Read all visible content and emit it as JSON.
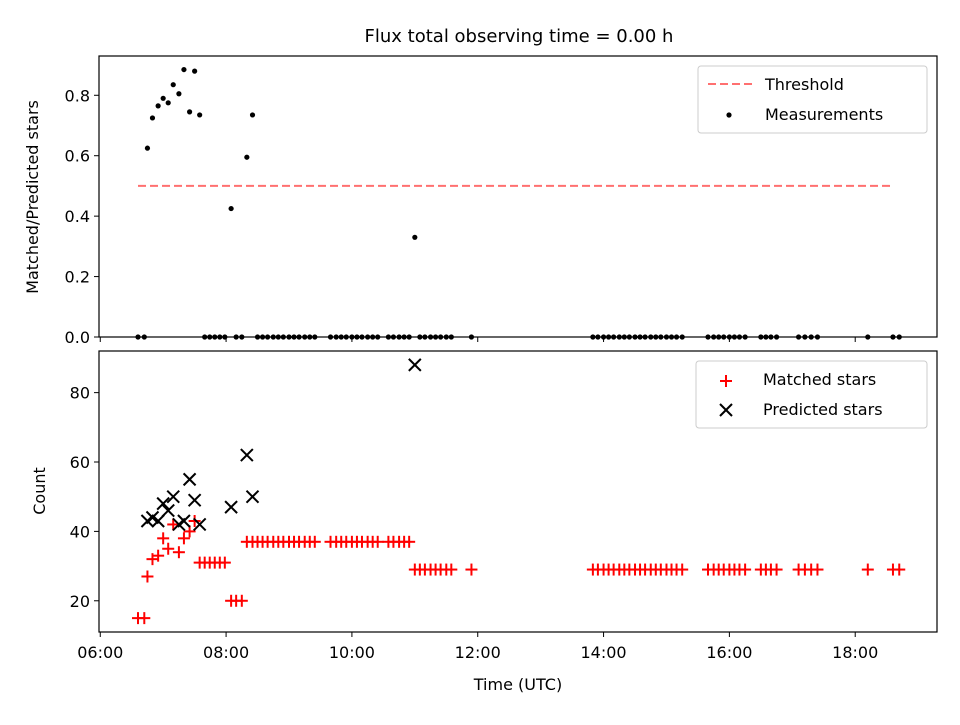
{
  "title": "Flux total observing time = 0.00 h",
  "chart_data": [
    {
      "type": "scatter",
      "ylabel": "Matched/Predicted stars",
      "xlim": [
        5.98,
        19.3
      ],
      "ylim": [
        0,
        0.93
      ],
      "yticks": [
        0.0,
        0.2,
        0.4,
        0.6,
        0.8
      ],
      "ytick_labels": [
        "0.0",
        "0.2",
        "0.4",
        "0.6",
        "0.8"
      ],
      "legend": {
        "position": "top-right",
        "threshold_label": "Threshold",
        "measurements_label": "Measurements"
      },
      "threshold": {
        "value": 0.5,
        "x_start": 6.6,
        "x_end": 18.6,
        "color": "#ff7070"
      },
      "measurements": {
        "color": "#000000",
        "points": [
          [
            6.6,
            0
          ],
          [
            6.7,
            0
          ],
          [
            6.75,
            0.625
          ],
          [
            6.83,
            0.725
          ],
          [
            6.92,
            0.765
          ],
          [
            7.0,
            0.79
          ],
          [
            7.08,
            0.775
          ],
          [
            7.16,
            0.835
          ],
          [
            7.25,
            0.805
          ],
          [
            7.33,
            0.885
          ],
          [
            7.42,
            0.745
          ],
          [
            7.5,
            0.88
          ],
          [
            7.58,
            0.735
          ],
          [
            7.66,
            0
          ],
          [
            7.74,
            0
          ],
          [
            7.82,
            0
          ],
          [
            7.9,
            0
          ],
          [
            7.98,
            0
          ],
          [
            8.08,
            0.425
          ],
          [
            8.16,
            0
          ],
          [
            8.25,
            0
          ],
          [
            8.33,
            0.595
          ],
          [
            8.42,
            0.735
          ],
          [
            8.5,
            0
          ],
          [
            8.58,
            0
          ],
          [
            8.66,
            0
          ],
          [
            8.75,
            0
          ],
          [
            8.83,
            0
          ],
          [
            8.91,
            0
          ],
          [
            9.0,
            0
          ],
          [
            9.08,
            0
          ],
          [
            9.16,
            0
          ],
          [
            9.25,
            0
          ],
          [
            9.33,
            0
          ],
          [
            9.41,
            0
          ],
          [
            9.66,
            0
          ],
          [
            9.75,
            0
          ],
          [
            9.83,
            0
          ],
          [
            9.91,
            0
          ],
          [
            10.0,
            0
          ],
          [
            10.08,
            0
          ],
          [
            10.16,
            0
          ],
          [
            10.25,
            0
          ],
          [
            10.33,
            0
          ],
          [
            10.41,
            0
          ],
          [
            10.58,
            0
          ],
          [
            10.66,
            0
          ],
          [
            10.75,
            0
          ],
          [
            10.83,
            0
          ],
          [
            10.91,
            0
          ],
          [
            11.0,
            0.33
          ],
          [
            11.08,
            0
          ],
          [
            11.16,
            0
          ],
          [
            11.25,
            0
          ],
          [
            11.33,
            0
          ],
          [
            11.41,
            0
          ],
          [
            11.5,
            0
          ],
          [
            11.58,
            0
          ],
          [
            11.9,
            0
          ],
          [
            13.83,
            0
          ],
          [
            13.91,
            0
          ],
          [
            14.0,
            0
          ],
          [
            14.08,
            0
          ],
          [
            14.16,
            0
          ],
          [
            14.25,
            0
          ],
          [
            14.33,
            0
          ],
          [
            14.41,
            0
          ],
          [
            14.5,
            0
          ],
          [
            14.58,
            0
          ],
          [
            14.66,
            0
          ],
          [
            14.75,
            0
          ],
          [
            14.83,
            0
          ],
          [
            14.91,
            0
          ],
          [
            15.0,
            0
          ],
          [
            15.08,
            0
          ],
          [
            15.16,
            0
          ],
          [
            15.25,
            0
          ],
          [
            15.66,
            0
          ],
          [
            15.75,
            0
          ],
          [
            15.83,
            0
          ],
          [
            15.91,
            0
          ],
          [
            16.0,
            0
          ],
          [
            16.08,
            0
          ],
          [
            16.16,
            0
          ],
          [
            16.25,
            0
          ],
          [
            16.5,
            0
          ],
          [
            16.58,
            0
          ],
          [
            16.66,
            0
          ],
          [
            16.75,
            0
          ],
          [
            17.1,
            0
          ],
          [
            17.2,
            0
          ],
          [
            17.3,
            0
          ],
          [
            17.4,
            0
          ],
          [
            18.2,
            0
          ],
          [
            18.6,
            0
          ],
          [
            18.7,
            0
          ]
        ]
      }
    },
    {
      "type": "scatter",
      "ylabel": "Count",
      "xlabel": "Time (UTC)",
      "xlim": [
        5.98,
        19.3
      ],
      "ylim": [
        11,
        92
      ],
      "yticks": [
        20,
        40,
        60,
        80
      ],
      "ytick_labels": [
        "20",
        "40",
        "60",
        "80"
      ],
      "xticks": [
        6,
        8,
        10,
        12,
        14,
        16,
        18
      ],
      "xtick_labels": [
        "06:00",
        "08:00",
        "10:00",
        "12:00",
        "14:00",
        "16:00",
        "18:00"
      ],
      "legend": {
        "position": "top-right",
        "matched_label": "Matched stars",
        "predicted_label": "Predicted stars"
      },
      "matched": {
        "color": "#ff0000",
        "points": [
          [
            6.6,
            15
          ],
          [
            6.7,
            15
          ],
          [
            6.75,
            27
          ],
          [
            6.83,
            32
          ],
          [
            6.92,
            33
          ],
          [
            7.0,
            38
          ],
          [
            7.08,
            35
          ],
          [
            7.16,
            42
          ],
          [
            7.25,
            34
          ],
          [
            7.33,
            38
          ],
          [
            7.42,
            40
          ],
          [
            7.5,
            43
          ],
          [
            7.58,
            31
          ],
          [
            7.66,
            31
          ],
          [
            7.74,
            31
          ],
          [
            7.82,
            31
          ],
          [
            7.9,
            31
          ],
          [
            7.98,
            31
          ],
          [
            8.08,
            20
          ],
          [
            8.16,
            20
          ],
          [
            8.25,
            20
          ],
          [
            8.33,
            37
          ],
          [
            8.42,
            37
          ],
          [
            8.5,
            37
          ],
          [
            8.58,
            37
          ],
          [
            8.66,
            37
          ],
          [
            8.75,
            37
          ],
          [
            8.83,
            37
          ],
          [
            8.91,
            37
          ],
          [
            9.0,
            37
          ],
          [
            9.08,
            37
          ],
          [
            9.16,
            37
          ],
          [
            9.25,
            37
          ],
          [
            9.33,
            37
          ],
          [
            9.41,
            37
          ],
          [
            9.66,
            37
          ],
          [
            9.75,
            37
          ],
          [
            9.83,
            37
          ],
          [
            9.91,
            37
          ],
          [
            10.0,
            37
          ],
          [
            10.08,
            37
          ],
          [
            10.16,
            37
          ],
          [
            10.25,
            37
          ],
          [
            10.33,
            37
          ],
          [
            10.41,
            37
          ],
          [
            10.58,
            37
          ],
          [
            10.66,
            37
          ],
          [
            10.75,
            37
          ],
          [
            10.83,
            37
          ],
          [
            10.91,
            37
          ],
          [
            11.0,
            29
          ],
          [
            11.08,
            29
          ],
          [
            11.16,
            29
          ],
          [
            11.25,
            29
          ],
          [
            11.33,
            29
          ],
          [
            11.41,
            29
          ],
          [
            11.5,
            29
          ],
          [
            11.58,
            29
          ],
          [
            11.9,
            29
          ],
          [
            13.83,
            29
          ],
          [
            13.91,
            29
          ],
          [
            14.0,
            29
          ],
          [
            14.08,
            29
          ],
          [
            14.16,
            29
          ],
          [
            14.25,
            29
          ],
          [
            14.33,
            29
          ],
          [
            14.41,
            29
          ],
          [
            14.5,
            29
          ],
          [
            14.58,
            29
          ],
          [
            14.66,
            29
          ],
          [
            14.75,
            29
          ],
          [
            14.83,
            29
          ],
          [
            14.91,
            29
          ],
          [
            15.0,
            29
          ],
          [
            15.08,
            29
          ],
          [
            15.16,
            29
          ],
          [
            15.25,
            29
          ],
          [
            15.66,
            29
          ],
          [
            15.75,
            29
          ],
          [
            15.83,
            29
          ],
          [
            15.91,
            29
          ],
          [
            16.0,
            29
          ],
          [
            16.08,
            29
          ],
          [
            16.16,
            29
          ],
          [
            16.25,
            29
          ],
          [
            16.5,
            29
          ],
          [
            16.58,
            29
          ],
          [
            16.66,
            29
          ],
          [
            16.75,
            29
          ],
          [
            17.1,
            29
          ],
          [
            17.2,
            29
          ],
          [
            17.3,
            29
          ],
          [
            17.4,
            29
          ],
          [
            18.2,
            29
          ],
          [
            18.6,
            29
          ],
          [
            18.7,
            29
          ]
        ]
      },
      "predicted": {
        "color": "#000000",
        "points": [
          [
            6.75,
            43
          ],
          [
            6.83,
            44
          ],
          [
            6.92,
            43
          ],
          [
            7.0,
            48
          ],
          [
            7.08,
            46
          ],
          [
            7.16,
            50
          ],
          [
            7.25,
            42
          ],
          [
            7.33,
            43
          ],
          [
            7.42,
            55
          ],
          [
            7.5,
            49
          ],
          [
            7.58,
            42
          ],
          [
            8.08,
            47
          ],
          [
            8.33,
            62
          ],
          [
            8.42,
            50
          ],
          [
            11.0,
            88
          ]
        ]
      }
    }
  ]
}
